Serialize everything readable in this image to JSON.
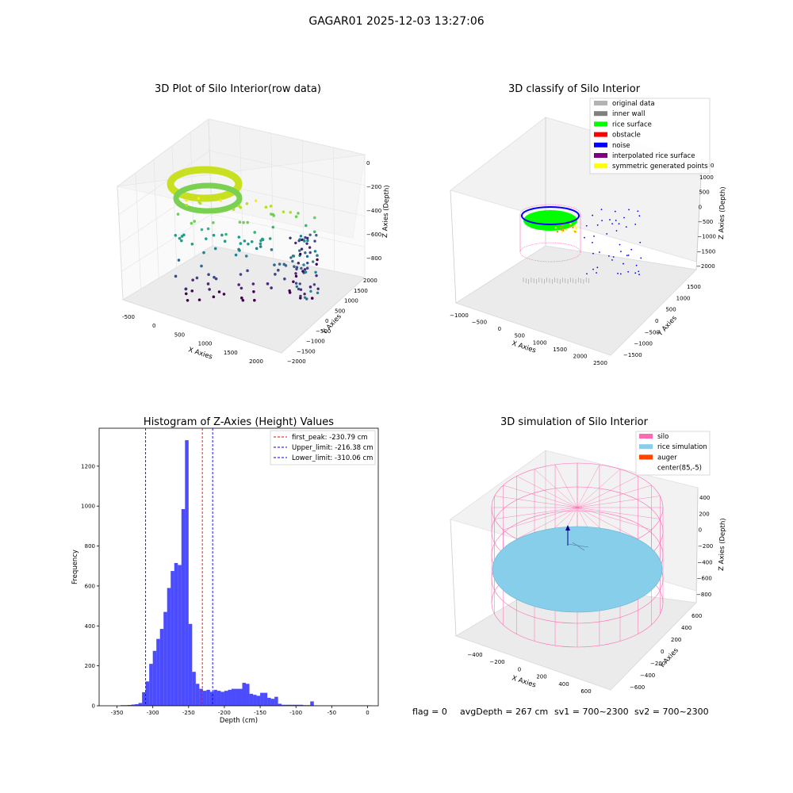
{
  "figure_title": "GAGAR01 2025-12-03 13:27:06",
  "footer": {
    "flag": "flag = 0",
    "avg_depth": "avgDepth = 267 cm",
    "sv1": "sv1 = 700~2300",
    "sv2": "sv2 = 700~2300"
  },
  "chart_data": [
    {
      "type": "scatter",
      "title": "3D Plot of Silo Interior(row data)",
      "xlabel": "X Axies",
      "ylabel": "Y Axies",
      "zlabel": "Z Axies (Depth)",
      "x_ticks": [
        "-500",
        "0",
        "500",
        "1000",
        "1500",
        "2000"
      ],
      "y_ticks": [
        "2000",
        "1500",
        "1000",
        "500",
        "0",
        "−500",
        "−1000",
        "−1500",
        "−2000"
      ],
      "z_ticks": [
        "0",
        "−200",
        "−400",
        "−600",
        "−800"
      ],
      "colormap": "viridis"
    },
    {
      "type": "scatter",
      "title": "3D classify of Silo Interior",
      "xlabel": "X Axies",
      "ylabel": "Y Axies",
      "zlabel": "Z Axies (Depth)",
      "x_ticks": [
        "−1000",
        "−500",
        "0",
        "500",
        "1000",
        "1500",
        "2000",
        "2500"
      ],
      "y_ticks": [
        "1500",
        "1000",
        "500",
        "0",
        "−500",
        "−1000",
        "−1500"
      ],
      "z_ticks": [
        "1000",
        "500",
        "0",
        "−500",
        "−1000",
        "−1500",
        "−2000"
      ],
      "z_top_partial": "00",
      "legend": [
        {
          "name": "original data",
          "color": "#b3b3b3"
        },
        {
          "name": "inner wall",
          "color": "#808080"
        },
        {
          "name": "rice surface",
          "color": "#00ff00"
        },
        {
          "name": "obstacle",
          "color": "#ff0000"
        },
        {
          "name": "noise",
          "color": "#0000ff"
        },
        {
          "name": "interpolated rice surface",
          "color": "#800080"
        },
        {
          "name": "symmetric generated points",
          "color": "#ffff00"
        }
      ]
    },
    {
      "type": "bar",
      "title": "Histogram of Z-Axies (Height) Values",
      "xlabel": "Depth (cm)",
      "ylabel": "Frequency",
      "xlim": [
        -375,
        15
      ],
      "ylim": [
        0,
        1390
      ],
      "x_ticks": [
        -350,
        -300,
        -250,
        -200,
        -150,
        -100,
        -50,
        0
      ],
      "y_ticks": [
        0,
        200,
        400,
        600,
        800,
        1000,
        1200
      ],
      "bar_color": "#0000ff",
      "bin_width": 5,
      "bins_left": [
        -345,
        -340,
        -335,
        -330,
        -325,
        -320,
        -315,
        -310,
        -305,
        -300,
        -295,
        -290,
        -285,
        -280,
        -275,
        -270,
        -265,
        -260,
        -255,
        -250,
        -245,
        -240,
        -235,
        -230,
        -225,
        -220,
        -215,
        -210,
        -205,
        -200,
        -195,
        -190,
        -185,
        -180,
        -175,
        -170,
        -165,
        -160,
        -155,
        -150,
        -145,
        -140,
        -135,
        -130,
        -125,
        -120,
        -115,
        -110,
        -105,
        -100,
        -95,
        -90,
        -85,
        -80,
        -75,
        -70,
        -65,
        -60,
        -55,
        -50,
        -45,
        -40,
        -35,
        -30,
        -25,
        -20,
        -15,
        -10,
        -5,
        0
      ],
      "counts": [
        3,
        3,
        4,
        6,
        8,
        14,
        68,
        122,
        210,
        275,
        335,
        385,
        470,
        590,
        675,
        715,
        705,
        985,
        1330,
        410,
        170,
        110,
        85,
        75,
        80,
        70,
        80,
        75,
        70,
        75,
        80,
        85,
        85,
        85,
        115,
        110,
        60,
        55,
        50,
        65,
        65,
        40,
        35,
        45,
        10,
        5,
        5,
        5,
        5,
        5,
        5,
        3,
        3,
        22,
        2,
        2,
        2,
        2,
        2,
        2,
        2,
        2,
        2,
        2,
        2,
        2,
        2,
        2,
        2,
        2
      ],
      "lines": [
        {
          "name": "first_peak: -230.79 cm",
          "x": -230.79,
          "color": "#ff0000"
        },
        {
          "name": "Upper_limit: -216.38 cm",
          "x": -216.38,
          "color": "#0000ff"
        },
        {
          "name": "Lower_limit: -310.06 cm",
          "x": -310.06,
          "color": "#0000ff"
        }
      ]
    },
    {
      "type": "scatter",
      "title": "3D simulation of Silo Interior",
      "xlabel": "X Axies",
      "ylabel": "Y Axies",
      "zlabel": "Z Axies (Depth)",
      "x_ticks": [
        "−400",
        "−200",
        "0",
        "200",
        "400",
        "600"
      ],
      "y_ticks": [
        "600",
        "400",
        "200",
        "0",
        "−200",
        "−400",
        "−600"
      ],
      "z_ticks": [
        "400",
        "200",
        "0",
        "−200",
        "−400",
        "−600",
        "−800"
      ],
      "legend": [
        {
          "name": "silo",
          "color": "#ff69b4"
        },
        {
          "name": "rice simulation",
          "color": "#87ceeb"
        },
        {
          "name": "auger",
          "color": "#ff4500"
        },
        {
          "name": "center(85,-5)",
          "color": "#ffffff"
        }
      ]
    }
  ]
}
